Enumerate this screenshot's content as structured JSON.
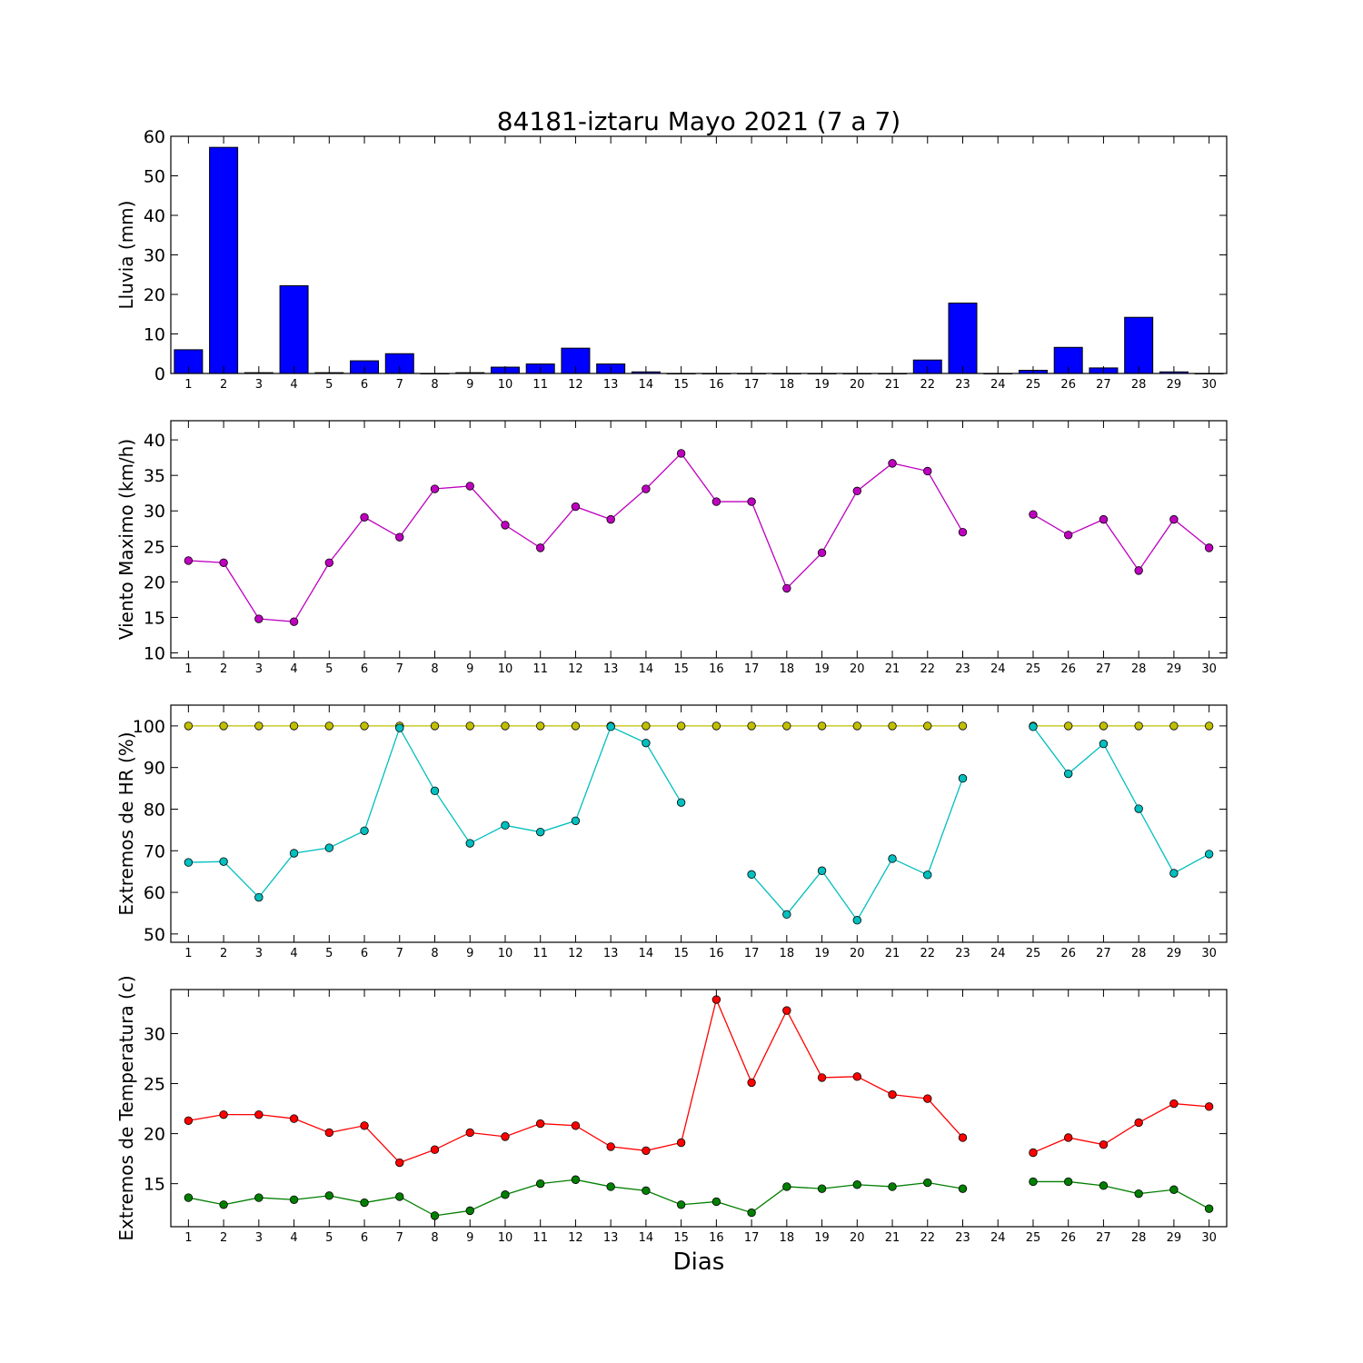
{
  "title": "84181-iztaru Mayo 2021  (7 a 7)",
  "xlabel": "Dias",
  "days": [
    1,
    2,
    3,
    4,
    5,
    6,
    7,
    8,
    9,
    10,
    11,
    12,
    13,
    14,
    15,
    16,
    17,
    18,
    19,
    20,
    21,
    22,
    23,
    24,
    25,
    26,
    27,
    28,
    29,
    30
  ],
  "chart_data": [
    {
      "type": "bar",
      "ylabel": "Lluvia (mm)",
      "ylim": [
        0,
        60
      ],
      "yticks": [
        0,
        10,
        20,
        30,
        40,
        50,
        60
      ],
      "grid": false,
      "series": [
        {
          "color": "#0000ff",
          "values": [
            6.0,
            57.2,
            0.2,
            22.2,
            0.2,
            3.2,
            5.0,
            0,
            0.2,
            1.6,
            2.4,
            6.4,
            2.4,
            0.4,
            0,
            0,
            0,
            0,
            0,
            0,
            0,
            3.4,
            17.8,
            0,
            0.8,
            6.6,
            1.4,
            14.2,
            0.4,
            0
          ]
        }
      ]
    },
    {
      "type": "line",
      "ylabel": "Viento Maximo (km/h)",
      "ylim": [
        9.3,
        42.7
      ],
      "yticks": [
        10,
        15,
        20,
        25,
        30,
        35,
        40
      ],
      "grid": false,
      "series": [
        {
          "color": "#bf00bf",
          "values": [
            23.0,
            22.7,
            14.8,
            14.4,
            22.7,
            29.1,
            26.3,
            33.1,
            33.5,
            28.0,
            24.8,
            30.6,
            28.8,
            33.1,
            38.1,
            31.3,
            31.3,
            19.1,
            24.1,
            32.8,
            36.7,
            35.6,
            27.0,
            null,
            29.5,
            26.6,
            28.8,
            21.6,
            28.8,
            24.8
          ]
        }
      ]
    },
    {
      "type": "line",
      "ylabel": "Extremos de HR (%)",
      "ylim": [
        48,
        105
      ],
      "yticks": [
        50,
        60,
        70,
        80,
        90,
        100
      ],
      "grid": false,
      "series": [
        {
          "color": "#bfbf00",
          "values": [
            100,
            100,
            100,
            100,
            100,
            100,
            100,
            100,
            100,
            100,
            100,
            100,
            100,
            100,
            100,
            100,
            100,
            100,
            100,
            100,
            100,
            100,
            100,
            null,
            100,
            100,
            100,
            100,
            100,
            100
          ]
        },
        {
          "color": "#00bfbf",
          "values": [
            67.2,
            67.4,
            58.8,
            69.4,
            70.7,
            74.8,
            99.5,
            84.4,
            71.8,
            76.1,
            74.5,
            77.2,
            99.8,
            95.9,
            81.6,
            null,
            64.3,
            54.7,
            65.2,
            53.3,
            68.1,
            64.2,
            87.4,
            null,
            99.8,
            88.5,
            95.7,
            80.1,
            64.6,
            69.2
          ]
        }
      ]
    },
    {
      "type": "line",
      "ylabel": "Extremos de Temperatura (c)",
      "ylim": [
        10.7,
        34.4
      ],
      "yticks": [
        15,
        20,
        25,
        30
      ],
      "grid": false,
      "series": [
        {
          "color": "#ff0000",
          "values": [
            21.3,
            21.9,
            21.9,
            21.5,
            20.1,
            20.8,
            17.1,
            18.4,
            20.1,
            19.7,
            21.0,
            20.8,
            18.7,
            18.3,
            19.1,
            33.4,
            25.1,
            32.3,
            25.6,
            25.7,
            23.9,
            23.5,
            19.6,
            null,
            18.1,
            19.6,
            18.9,
            21.1,
            23.0,
            22.7
          ]
        },
        {
          "color": "#007f00",
          "values": [
            13.6,
            12.9,
            13.6,
            13.4,
            13.8,
            13.1,
            13.7,
            11.8,
            12.3,
            13.9,
            15.0,
            15.4,
            14.7,
            14.3,
            12.9,
            13.2,
            12.1,
            14.7,
            14.5,
            14.9,
            14.7,
            15.1,
            14.5,
            null,
            15.2,
            15.2,
            14.8,
            14.0,
            14.4,
            12.5
          ]
        }
      ]
    }
  ]
}
